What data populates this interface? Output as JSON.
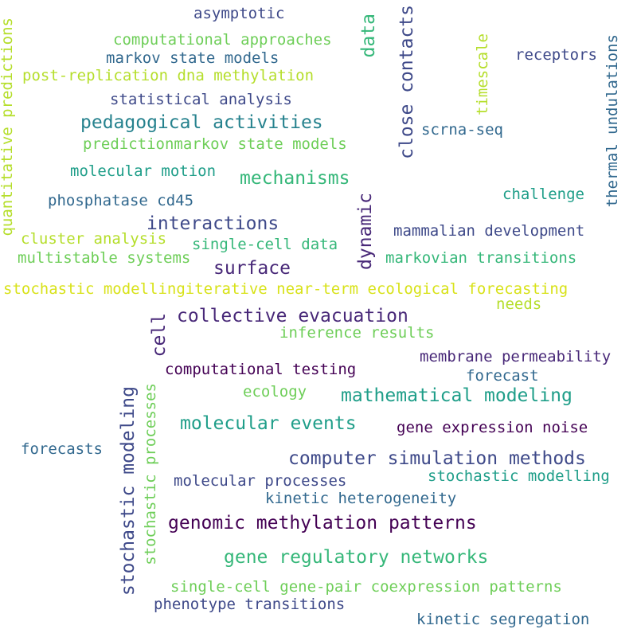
{
  "words": {
    "asymptotic": "asymptotic",
    "computational_approaches": "computational approaches",
    "markov_state_models": "markov state models",
    "post_replication": "post-replication dna methylation",
    "statistical_analysis": "statistical analysis",
    "pedagogical_activities": "pedagogical activities",
    "predictionmarkov": "predictionmarkov state models",
    "molecular_motion": "molecular motion",
    "mechanisms": "mechanisms",
    "phosphatase": "phosphatase cd45",
    "interactions": "interactions",
    "cluster_analysis": "cluster analysis",
    "single_cell_data": "single-cell data",
    "multistable_systems": "multistable systems",
    "surface": "surface",
    "stochastic_modelling_iterative": "stochastic modellingiterative near-term ecological forecasting",
    "needs": "needs",
    "collective_evacuation": "collective evacuation",
    "inference_results": "inference results",
    "computational_testing": "computational testing",
    "membrane_permeability": "membrane permeability",
    "forecast": "forecast",
    "ecology": "ecology",
    "mathematical_modeling": "mathematical modeling",
    "molecular_events": "molecular events",
    "gene_expression_noise": "gene expression noise",
    "forecasts": "forecasts",
    "computer_simulation": "computer simulation methods",
    "molecular_processes": "molecular processes",
    "stochastic_modelling": "stochastic modelling",
    "kinetic_heterogeneity": "kinetic heterogeneity",
    "genomic_methylation": "genomic methylation patterns",
    "gene_regulatory": "gene regulatory networks",
    "single_cell_gene_pair": "single-cell gene-pair coexpression patterns",
    "phenotype_transitions": "phenotype transitions",
    "kinetic_segregation": "kinetic segregation",
    "receptors": "receptors",
    "scrna_seq": "scrna-seq",
    "challenge": "challenge",
    "mammalian_development": "mammalian development",
    "markovian_transitions": "markovian transitions",
    "quantitative_predictions": "quantitative predictions",
    "data": "data",
    "close_contacts": "close contacts",
    "timescale": "timescale",
    "thermal_undulations": "thermal undulations",
    "dynamic": "dynamic",
    "cell": "cell",
    "stochastic_modeling": "stochastic modeling",
    "stochastic_processes": "stochastic processes"
  },
  "colors": {
    "dark_purple": "#440154",
    "indigo": "#482878",
    "slate_blue": "#3e4989",
    "blue": "#31688e",
    "teal_blue": "#26828e",
    "teal": "#1f9e89",
    "green": "#35b779",
    "light_green": "#6ece58",
    "yellow_green": "#b5de2b",
    "yellow": "#d8e219"
  }
}
